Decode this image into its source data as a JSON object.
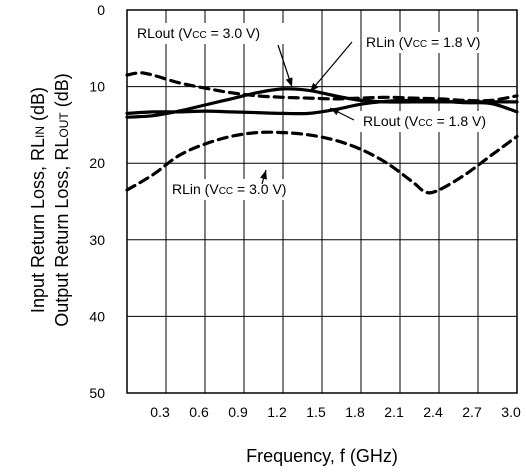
{
  "chart_data": {
    "type": "line",
    "xlabel": "Frequency,  f  (GHz)",
    "ylabel": [
      "Input Return Loss, RLIN (dB)",
      "Output Return Loss, RLOUT (dB)"
    ],
    "xlim": [
      0,
      3.0
    ],
    "ylim": [
      0,
      50
    ],
    "y_inverted": true,
    "grid": true,
    "x_ticks": [
      "0.3",
      "0.6",
      "0.9",
      "1.2",
      "1.5",
      "1.8",
      "2.1",
      "2.4",
      "2.7",
      "3.0"
    ],
    "y_ticks": [
      "0",
      "10",
      "20",
      "30",
      "40",
      "50"
    ],
    "series": [
      {
        "name": "RLout (VCC = 3.0 V)",
        "style": "solid",
        "x": [
          0.0,
          0.2,
          0.4,
          0.6,
          0.8,
          1.0,
          1.2,
          1.4,
          1.6,
          1.8,
          2.0,
          2.2,
          2.4,
          2.6,
          2.8,
          3.0
        ],
        "y": [
          14.0,
          13.8,
          13.2,
          12.4,
          11.6,
          10.8,
          10.3,
          10.5,
          11.2,
          11.8,
          12.0,
          12.0,
          12.0,
          12.0,
          12.0,
          12.0
        ]
      },
      {
        "name": "RLin (VCC = 1.8 V)",
        "style": "dashed",
        "x": [
          0.0,
          0.1,
          0.2,
          0.4,
          0.6,
          0.8,
          1.0,
          1.2,
          1.4,
          1.6,
          1.8,
          2.0,
          2.2,
          2.4,
          2.6,
          2.8,
          3.0
        ],
        "y": [
          8.5,
          8.2,
          8.5,
          9.5,
          10.2,
          10.8,
          11.2,
          11.4,
          11.5,
          11.6,
          11.5,
          11.4,
          11.5,
          11.6,
          11.8,
          11.8,
          11.2
        ]
      },
      {
        "name": "RLout (VCC = 1.8 V)",
        "style": "solid",
        "x": [
          0.0,
          0.2,
          0.4,
          0.6,
          0.8,
          1.0,
          1.2,
          1.4,
          1.6,
          1.8,
          2.0,
          2.2,
          2.4,
          2.6,
          2.8,
          3.0
        ],
        "y": [
          13.5,
          13.3,
          13.3,
          13.2,
          13.3,
          13.4,
          13.5,
          13.5,
          13.0,
          12.3,
          11.9,
          11.8,
          11.9,
          12.1,
          12.2,
          13.3
        ]
      },
      {
        "name": "RLin (VCC = 3.0 V)",
        "style": "dashed",
        "x": [
          0.0,
          0.2,
          0.4,
          0.6,
          0.8,
          1.0,
          1.2,
          1.4,
          1.6,
          1.8,
          2.0,
          2.2,
          2.3,
          2.4,
          2.6,
          2.8,
          3.0
        ],
        "y": [
          23.5,
          21.5,
          19.0,
          17.5,
          16.5,
          16.0,
          16.0,
          16.3,
          17.0,
          18.2,
          20.0,
          22.5,
          23.8,
          23.5,
          21.5,
          19.0,
          16.5
        ]
      }
    ],
    "annotations": [
      {
        "text": "RLout (Vcc = 3.0 V)",
        "main1": "RLout (V",
        "sub": "CC",
        "main2": " = 3.0 V)"
      },
      {
        "text": "RLin (Vcc = 1.8 V)",
        "main1": "RLin (V",
        "sub": "CC",
        "main2": " = 1.8 V)"
      },
      {
        "text": "RLout (Vcc = 1.8 V)",
        "main1": "RLout (V",
        "sub": "CC",
        "main2": " = 1.8 V)"
      },
      {
        "text": "RLin (Vcc = 3.0 V)",
        "main1": "RLin (V",
        "sub": "CC",
        "main2": " = 3.0 V)"
      }
    ],
    "ylabel_parts": [
      {
        "main": "Input Return Loss, RL",
        "sub": "IN",
        "tail": " (dB)"
      },
      {
        "main": "Output Return Loss, RL",
        "sub": "OUT",
        "tail": " (dB)"
      }
    ]
  }
}
